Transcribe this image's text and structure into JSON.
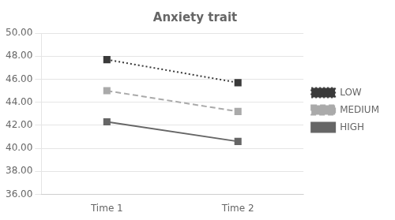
{
  "chart_data": {
    "type": "line",
    "title": "Anxiety trait",
    "categories": [
      "Time 1",
      "Time 2"
    ],
    "series": [
      {
        "name": "LOW",
        "color": "#3a3a3a",
        "line_style": "dotted",
        "marker": "square",
        "values": [
          47.7,
          45.7
        ]
      },
      {
        "name": "MEDIUM",
        "color": "#aaaaaa",
        "line_style": "dashed",
        "marker": "square",
        "values": [
          45.0,
          43.2
        ]
      },
      {
        "name": "HIGH",
        "color": "#666666",
        "line_style": "solid",
        "marker": "square",
        "values": [
          42.3,
          40.6
        ]
      }
    ],
    "ylim": [
      36.0,
      50.0
    ],
    "yticks": [
      {
        "value": 36.0,
        "label": "36.00"
      },
      {
        "value": 38.0,
        "label": "38.00"
      },
      {
        "value": 40.0,
        "label": "40.00"
      },
      {
        "value": 42.0,
        "label": "42.00"
      },
      {
        "value": 44.0,
        "label": "44.00"
      },
      {
        "value": 46.0,
        "label": "46.00"
      },
      {
        "value": 48.0,
        "label": "48.00"
      },
      {
        "value": 50.0,
        "label": "50.00"
      }
    ],
    "grid": "y",
    "legend": "right"
  }
}
